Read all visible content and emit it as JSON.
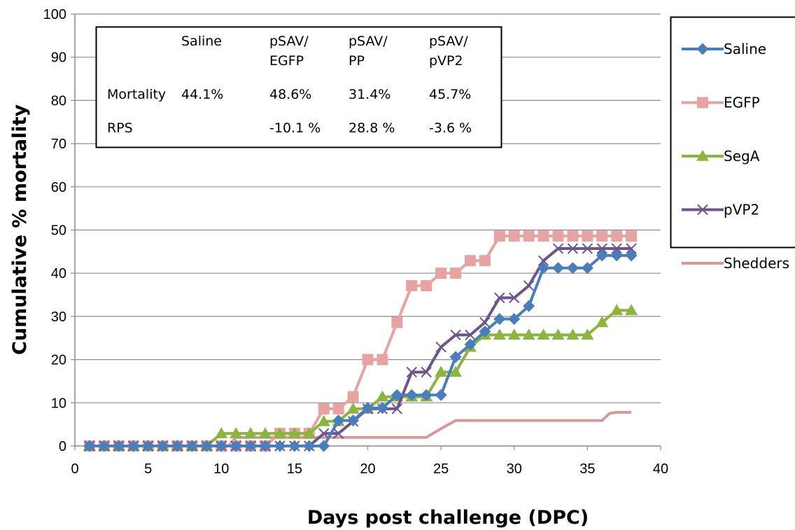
{
  "chart_data": {
    "type": "line",
    "xlabel": "Days post challenge (DPC)",
    "ylabel": "Cumulative % mortality",
    "xlim": [
      0,
      40
    ],
    "ylim": [
      0,
      100
    ],
    "xticks": [
      "0",
      "5",
      "10",
      "15",
      "20",
      "25",
      "30",
      "35",
      "40"
    ],
    "yticks": [
      "0",
      "10",
      "20",
      "30",
      "40",
      "50",
      "60",
      "70",
      "80",
      "90",
      "100"
    ],
    "grid": "horizontal",
    "legend_position": "right",
    "series": [
      {
        "name": "Saline",
        "color": "#4a7ebb",
        "marker": "diamond",
        "x": [
          1,
          2,
          3,
          4,
          5,
          6,
          7,
          8,
          9,
          10,
          11,
          12,
          13,
          14,
          15,
          16,
          17,
          18,
          19,
          20,
          21,
          22,
          23,
          24,
          25,
          26,
          27,
          28,
          29,
          30,
          31,
          32,
          33,
          34,
          35,
          36,
          37,
          38
        ],
        "values": [
          0,
          0,
          0,
          0,
          0,
          0,
          0,
          0,
          0,
          0,
          0,
          0,
          0,
          0,
          0,
          0,
          0,
          5.9,
          5.9,
          8.8,
          8.8,
          11.8,
          11.8,
          11.8,
          11.8,
          20.6,
          23.5,
          26.5,
          29.4,
          29.4,
          32.4,
          41.2,
          41.2,
          41.2,
          41.2,
          44.1,
          44.1,
          44.1
        ]
      },
      {
        "name": "EGFP",
        "color": "#e6a3a1",
        "marker": "square",
        "x": [
          1,
          2,
          3,
          4,
          5,
          6,
          7,
          8,
          9,
          10,
          11,
          12,
          13,
          14,
          15,
          16,
          17,
          18,
          19,
          20,
          21,
          22,
          23,
          24,
          25,
          26,
          27,
          28,
          29,
          30,
          31,
          32,
          33,
          34,
          35,
          36,
          37,
          38
        ],
        "values": [
          0,
          0,
          0,
          0,
          0,
          0,
          0,
          0,
          0,
          0,
          0,
          0,
          0,
          2.9,
          2.9,
          2.9,
          8.6,
          8.6,
          11.4,
          20,
          20,
          28.6,
          37.1,
          37.1,
          40,
          40,
          42.9,
          42.9,
          48.6,
          48.6,
          48.6,
          48.6,
          48.6,
          48.6,
          48.6,
          48.6,
          48.6,
          48.6
        ]
      },
      {
        "name": "SegA",
        "color": "#8cb43f",
        "marker": "triangle",
        "x": [
          1,
          2,
          3,
          4,
          5,
          6,
          7,
          8,
          9,
          10,
          11,
          12,
          13,
          14,
          15,
          16,
          17,
          18,
          19,
          20,
          21,
          22,
          23,
          24,
          25,
          26,
          27,
          28,
          29,
          30,
          31,
          32,
          33,
          34,
          35,
          36,
          37,
          38
        ],
        "values": [
          0,
          0,
          0,
          0,
          0,
          0,
          0,
          0,
          0,
          2.9,
          2.9,
          2.9,
          2.9,
          2.9,
          2.9,
          2.9,
          5.7,
          5.7,
          8.6,
          8.6,
          11.4,
          11.4,
          11.4,
          11.4,
          17.1,
          17.1,
          22.9,
          25.7,
          25.7,
          25.7,
          25.7,
          25.7,
          25.7,
          25.7,
          25.7,
          28.6,
          31.4,
          31.4
        ]
      },
      {
        "name": "pVP2",
        "color": "#6e548d",
        "marker": "x",
        "x": [
          1,
          2,
          3,
          4,
          5,
          6,
          7,
          8,
          9,
          10,
          11,
          12,
          13,
          14,
          15,
          16,
          17,
          18,
          19,
          20,
          21,
          22,
          23,
          24,
          25,
          26,
          27,
          28,
          29,
          30,
          31,
          32,
          33,
          34,
          35,
          36,
          37,
          38
        ],
        "values": [
          0,
          0,
          0,
          0,
          0,
          0,
          0,
          0,
          0,
          0,
          0,
          0,
          0,
          0,
          0,
          0,
          2.9,
          2.9,
          5.7,
          8.6,
          8.6,
          8.6,
          17.1,
          17.1,
          22.9,
          25.7,
          25.7,
          28.6,
          34.3,
          34.3,
          37.1,
          42.9,
          45.7,
          45.7,
          45.7,
          45.7,
          45.7,
          45.7
        ]
      },
      {
        "name": "Shedders",
        "color": "#d49a9a",
        "marker": "none",
        "x": [
          10.5,
          11,
          16.5,
          24,
          25,
          26,
          26.5,
          28,
          36,
          36.5,
          37,
          38
        ],
        "values": [
          0,
          2,
          2,
          2,
          4,
          5.9,
          5.9,
          5.9,
          5.9,
          7.5,
          7.8,
          7.8
        ]
      }
    ],
    "table": {
      "headers": [
        "",
        "Saline",
        "pSAV/\nEGFP",
        "pSAV/\nPP",
        "pSAV/\npVP2"
      ],
      "rows": [
        [
          "Mortality",
          "44.1%",
          "48.6%",
          "31.4%",
          "45.7%"
        ],
        [
          "RPS",
          "",
          "-10.1 %",
          "28.8 %",
          "-3.6 %"
        ]
      ]
    }
  }
}
